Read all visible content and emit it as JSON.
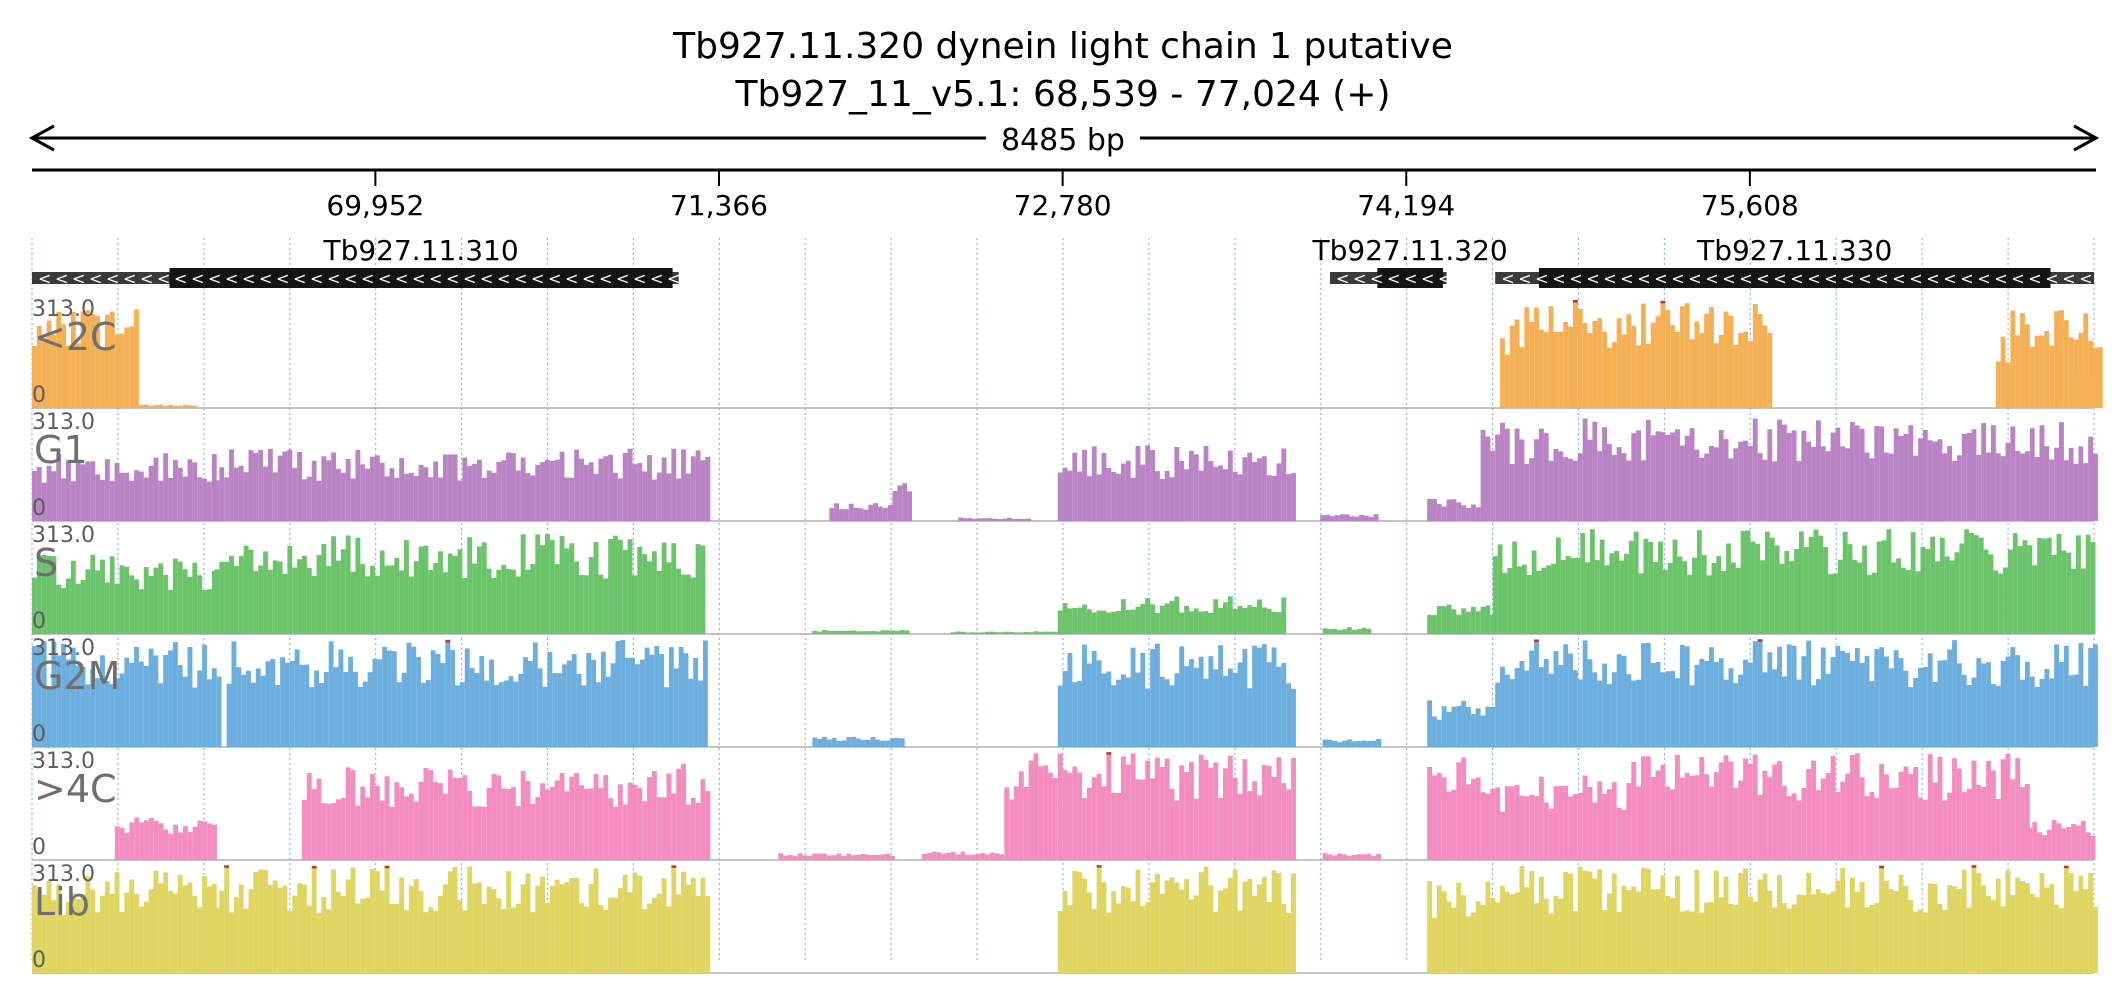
{
  "header": {
    "title": "Tb927.11.320  dynein light chain 1  putative",
    "locus": "Tb927_11_v5.1: 68,539 - 77,024 (+)",
    "span_label": "8485 bp"
  },
  "chart_data": {
    "type": "area",
    "region": {
      "chrom": "Tb927_11_v5.1",
      "start": 68539,
      "end": 77024,
      "strand": "+"
    },
    "x_ticks": [
      "69,952",
      "71,366",
      "72,780",
      "74,194",
      "75,608"
    ],
    "x_tick_values": [
      69952,
      71366,
      72780,
      74194,
      75608
    ],
    "grid": true,
    "genes": [
      {
        "name": "Tb927.11.310",
        "label": "Tb927.11.310",
        "start": 68539,
        "end": 71200,
        "cds_start": 69105,
        "cds_end": 71175,
        "strand": "-"
      },
      {
        "name": "Tb927.11.320",
        "label": "Tb927.11.320",
        "start": 73880,
        "end": 74360,
        "cds_start": 74075,
        "cds_end": 74345,
        "strand": "-"
      },
      {
        "name": "Tb927.11.330",
        "label": "Tb927.11.330",
        "start": 74560,
        "end": 77024,
        "cds_start": 74740,
        "cds_end": 76845,
        "strand": "-"
      }
    ],
    "y_max": 313.0,
    "y_max_label": "313.0",
    "y_min_label": "0",
    "bin_size_bp": 20,
    "tracks": [
      {
        "name": "<2C",
        "color": "#F5B056",
        "segments": [
          {
            "start": 68539,
            "end": 68960,
            "y": 313
          },
          {
            "start": 68960,
            "end": 69210,
            "y": 10
          },
          {
            "start": 74580,
            "end": 74620,
            "y": 240
          },
          {
            "start": 74620,
            "end": 75700,
            "y": 313
          },
          {
            "start": 76620,
            "end": 76680,
            "y": 230
          },
          {
            "start": 76680,
            "end": 77050,
            "y": 313
          },
          {
            "start": 76940,
            "end": 77024,
            "y": 150
          }
        ]
      },
      {
        "name": "G1",
        "color": "#B983C4",
        "segments": [
          {
            "start": 68539,
            "end": 69280,
            "y": 200
          },
          {
            "start": 69290,
            "end": 71320,
            "y": 210
          },
          {
            "start": 71820,
            "end": 72080,
            "y": 55
          },
          {
            "start": 72080,
            "end": 72150,
            "y": 120
          },
          {
            "start": 72350,
            "end": 72650,
            "y": 10
          },
          {
            "start": 72760,
            "end": 73740,
            "y": 220
          },
          {
            "start": 73840,
            "end": 74080,
            "y": 20
          },
          {
            "start": 74280,
            "end": 74500,
            "y": 65
          },
          {
            "start": 74500,
            "end": 77024,
            "y": 300
          }
        ]
      },
      {
        "name": "S",
        "color": "#6CC46A",
        "segments": [
          {
            "start": 68539,
            "end": 69280,
            "y": 230
          },
          {
            "start": 69290,
            "end": 71300,
            "y": 290
          },
          {
            "start": 71750,
            "end": 72150,
            "y": 12
          },
          {
            "start": 72320,
            "end": 72760,
            "y": 8
          },
          {
            "start": 72760,
            "end": 73700,
            "y": 110
          },
          {
            "start": 73850,
            "end": 74050,
            "y": 20
          },
          {
            "start": 74280,
            "end": 74550,
            "y": 90
          },
          {
            "start": 74550,
            "end": 77024,
            "y": 305
          }
        ]
      },
      {
        "name": "G2M",
        "color": "#6CAEDE",
        "segments": [
          {
            "start": 68539,
            "end": 69300,
            "y": 313
          },
          {
            "start": 69340,
            "end": 71320,
            "y": 313
          },
          {
            "start": 71750,
            "end": 72120,
            "y": 30
          },
          {
            "start": 72760,
            "end": 73740,
            "y": 300
          },
          {
            "start": 73850,
            "end": 74080,
            "y": 25
          },
          {
            "start": 74280,
            "end": 74560,
            "y": 140
          },
          {
            "start": 74560,
            "end": 77024,
            "y": 313
          }
        ]
      },
      {
        "name": ">4C",
        "color": "#F38DBF",
        "segments": [
          {
            "start": 68880,
            "end": 69290,
            "y": 130
          },
          {
            "start": 69650,
            "end": 71320,
            "y": 280
          },
          {
            "start": 71610,
            "end": 72080,
            "y": 20
          },
          {
            "start": 72200,
            "end": 72540,
            "y": 25
          },
          {
            "start": 72540,
            "end": 73740,
            "y": 313
          },
          {
            "start": 73850,
            "end": 74080,
            "y": 20
          },
          {
            "start": 74280,
            "end": 74560,
            "y": 313
          },
          {
            "start": 74560,
            "end": 75120,
            "y": 250
          },
          {
            "start": 75120,
            "end": 76750,
            "y": 313
          },
          {
            "start": 76750,
            "end": 77024,
            "y": 120
          }
        ]
      },
      {
        "name": "Lib",
        "color": "#DFD560",
        "segments": [
          {
            "start": 68539,
            "end": 69290,
            "y": 300
          },
          {
            "start": 69290,
            "end": 71320,
            "y": 313
          },
          {
            "start": 72760,
            "end": 73740,
            "y": 313
          },
          {
            "start": 74280,
            "end": 74560,
            "y": 270
          },
          {
            "start": 74560,
            "end": 77024,
            "y": 313
          }
        ]
      }
    ]
  }
}
